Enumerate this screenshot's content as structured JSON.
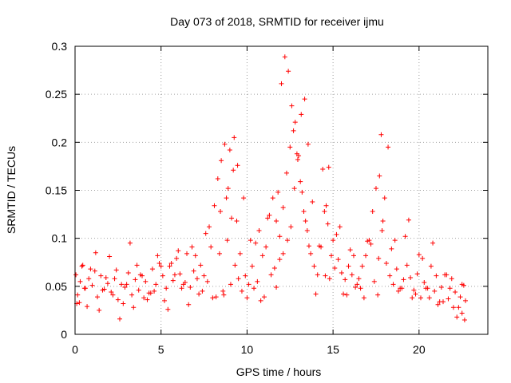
{
  "chart_data": {
    "type": "scatter",
    "title": "Day 073 of 2018, SRMTID for receiver ijmu",
    "xlabel": "GPS time / hours",
    "ylabel": "SRMTID / TECUs",
    "xlim": [
      0,
      24.0
    ],
    "ylim": [
      0,
      0.3
    ],
    "xticks": [
      0,
      5,
      10,
      15,
      20
    ],
    "yticks": [
      0,
      0.05,
      0.1,
      0.15,
      0.2,
      0.25,
      0.3
    ],
    "xtick_labels": [
      "0",
      "5",
      "10",
      "15",
      "20"
    ],
    "ytick_labels": [
      "0",
      "0.05",
      "0.1",
      "0.15",
      "0.2",
      "0.25",
      "0.3"
    ],
    "grid": true,
    "marker": "+",
    "color": "#ff0000",
    "series": [
      {
        "name": "SRMTID",
        "x": [
          0.05,
          0.15,
          0.3,
          0.45,
          0.6,
          0.8,
          1.0,
          1.15,
          1.3,
          1.5,
          1.7,
          1.9,
          2.1,
          2.3,
          2.5,
          2.7,
          2.9,
          3.1,
          3.3,
          3.5,
          3.7,
          3.9,
          4.1,
          4.3,
          4.5,
          4.7,
          4.9,
          5.1,
          5.3,
          5.5,
          5.7,
          5.9,
          6.1,
          6.3,
          6.5,
          6.7,
          6.9,
          7.1,
          7.3,
          7.5,
          7.7,
          7.9,
          8.1,
          8.3,
          8.5,
          8.7,
          8.9,
          9.1,
          9.3,
          9.5,
          9.7,
          9.9,
          10.1,
          10.3,
          10.5,
          10.7,
          10.9,
          11.1,
          11.3,
          11.5,
          11.7,
          11.9,
          12.1,
          12.3,
          12.5,
          12.7,
          12.9,
          13.1,
          13.3,
          13.5,
          13.7,
          13.9,
          14.1,
          14.3,
          14.5,
          14.7,
          14.9,
          15.1,
          15.3,
          15.5,
          15.7,
          15.9,
          16.1,
          16.3,
          16.5,
          16.7,
          16.9,
          17.1,
          17.3,
          17.5,
          17.7,
          17.9,
          18.1,
          18.3,
          18.5,
          18.7,
          18.9,
          19.1,
          19.3,
          19.5,
          19.7,
          19.9,
          20.1,
          20.3,
          20.5,
          20.7,
          20.9,
          21.1,
          21.3,
          21.5,
          21.7,
          21.9,
          22.1,
          22.3,
          22.5,
          22.7,
          0.1,
          0.4,
          0.7,
          1.2,
          1.6,
          2.0,
          2.4,
          2.8,
          3.2,
          3.6,
          4.0,
          4.4,
          4.8,
          5.2,
          5.6,
          6.0,
          6.4,
          6.8,
          7.2,
          7.6,
          8.0,
          8.4,
          8.6,
          8.8,
          9.0,
          9.2,
          9.4,
          9.6,
          10.0,
          10.4,
          10.8,
          11.2,
          11.6,
          11.8,
          12.0,
          12.2,
          12.4,
          12.6,
          12.8,
          13.0,
          13.2,
          13.4,
          13.6,
          14.0,
          14.4,
          14.6,
          14.8,
          15.2,
          15.6,
          16.0,
          16.4,
          16.8,
          17.2,
          17.6,
          17.8,
          18.0,
          18.4,
          18.8,
          19.2,
          19.6,
          20.0,
          20.4,
          20.8,
          21.2,
          21.6,
          22.0,
          22.4,
          22.6,
          0.25,
          0.55,
          0.9,
          1.4,
          1.8,
          2.2,
          2.6,
          3.0,
          3.4,
          3.8,
          4.2,
          4.6,
          5.0,
          5.4,
          5.8,
          6.2,
          6.6,
          7.0,
          7.4,
          7.8,
          8.2,
          8.45,
          8.65,
          8.85,
          9.05,
          9.25,
          9.45,
          9.8,
          10.2,
          10.6,
          11.0,
          11.4,
          11.7,
          11.9,
          12.1,
          12.35,
          12.55,
          12.75,
          12.95,
          13.15,
          13.35,
          13.55,
          13.8,
          14.2,
          14.55,
          14.75,
          15.0,
          15.4,
          15.8,
          16.2,
          16.6,
          17.0,
          17.4,
          17.65,
          17.85,
          18.2,
          18.6,
          19.0,
          19.4,
          19.8,
          20.2,
          20.6,
          21.0,
          21.4,
          21.8,
          22.2,
          22.5,
          22.65
        ],
        "y": [
          0.062,
          0.041,
          0.055,
          0.072,
          0.048,
          0.058,
          0.051,
          0.066,
          0.039,
          0.061,
          0.047,
          0.053,
          0.044,
          0.058,
          0.036,
          0.052,
          0.049,
          0.064,
          0.041,
          0.057,
          0.046,
          0.061,
          0.055,
          0.043,
          0.068,
          0.052,
          0.074,
          0.061,
          0.048,
          0.071,
          0.056,
          0.079,
          0.063,
          0.052,
          0.084,
          0.049,
          0.066,
          0.058,
          0.072,
          0.061,
          0.055,
          0.091,
          0.134,
          0.162,
          0.181,
          0.198,
          0.152,
          0.121,
          0.072,
          0.058,
          0.045,
          0.061,
          0.052,
          0.071,
          0.095,
          0.108,
          0.082,
          0.091,
          0.124,
          0.142,
          0.118,
          0.102,
          0.132,
          0.168,
          0.195,
          0.212,
          0.188,
          0.159,
          0.128,
          0.108,
          0.084,
          0.071,
          0.062,
          0.091,
          0.128,
          0.115,
          0.082,
          0.069,
          0.078,
          0.064,
          0.057,
          0.071,
          0.062,
          0.049,
          0.058,
          0.071,
          0.082,
          0.098,
          0.128,
          0.152,
          0.165,
          0.118,
          0.074,
          0.061,
          0.052,
          0.068,
          0.048,
          0.057,
          0.072,
          0.059,
          0.046,
          0.063,
          0.038,
          0.054,
          0.048,
          0.071,
          0.045,
          0.031,
          0.049,
          0.062,
          0.037,
          0.058,
          0.044,
          0.028,
          0.052,
          0.035,
          0.032,
          0.071,
          0.029,
          0.085,
          0.046,
          0.081,
          0.067,
          0.032,
          0.095,
          0.072,
          0.038,
          0.043,
          0.082,
          0.035,
          0.074,
          0.087,
          0.054,
          0.091,
          0.042,
          0.105,
          0.038,
          0.084,
          0.045,
          0.142,
          0.192,
          0.171,
          0.118,
          0.084,
          0.038,
          0.048,
          0.035,
          0.121,
          0.069,
          0.148,
          0.261,
          0.289,
          0.274,
          0.238,
          0.221,
          0.186,
          0.148,
          0.118,
          0.092,
          0.042,
          0.172,
          0.134,
          0.058,
          0.104,
          0.042,
          0.088,
          0.052,
          0.038,
          0.094,
          0.041,
          0.208,
          0.142,
          0.089,
          0.045,
          0.102,
          0.038,
          0.083,
          0.048,
          0.095,
          0.034,
          0.062,
          0.028,
          0.039,
          0.051,
          0.033,
          0.048,
          0.068,
          0.025,
          0.059,
          0.041,
          0.016,
          0.052,
          0.028,
          0.062,
          0.036,
          0.045,
          0.071,
          0.026,
          0.062,
          0.048,
          0.031,
          0.082,
          0.045,
          0.112,
          0.039,
          0.128,
          0.041,
          0.098,
          0.052,
          0.205,
          0.176,
          0.142,
          0.098,
          0.055,
          0.039,
          0.062,
          0.049,
          0.078,
          0.084,
          0.098,
          0.112,
          0.152,
          0.182,
          0.229,
          0.245,
          0.198,
          0.138,
          0.092,
          0.061,
          0.174,
          0.098,
          0.112,
          0.041,
          0.082,
          0.048,
          0.097,
          0.055,
          0.079,
          0.108,
          0.195,
          0.098,
          0.048,
          0.119,
          0.042,
          0.079,
          0.038,
          0.061,
          0.034,
          0.048,
          0.018,
          0.022,
          0.015
        ]
      }
    ]
  }
}
